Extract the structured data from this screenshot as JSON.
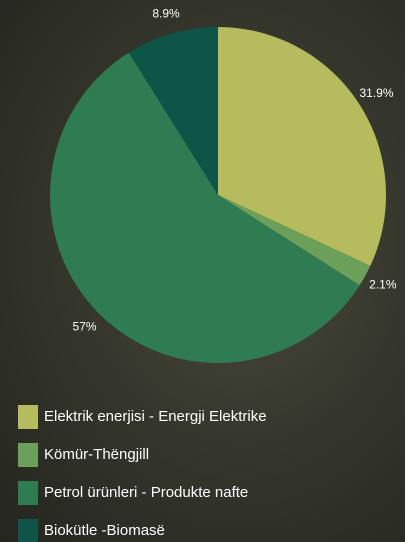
{
  "chart_data": {
    "type": "pie",
    "categories": [
      "Elektrik enerjisi - Energji Elektrike",
      "Kömür-Thëngjill",
      "Petrol ürünleri - Produkte nafte",
      "Biokütle -Biomasë"
    ],
    "values": [
      31.9,
      2.1,
      57,
      8.9
    ],
    "value_labels": [
      "31.9%",
      "2.1%",
      "57%",
      "8.9%"
    ],
    "colors": [
      "#b6bb5e",
      "#6b9f5a",
      "#2f7b52",
      "#0e5447"
    ]
  }
}
